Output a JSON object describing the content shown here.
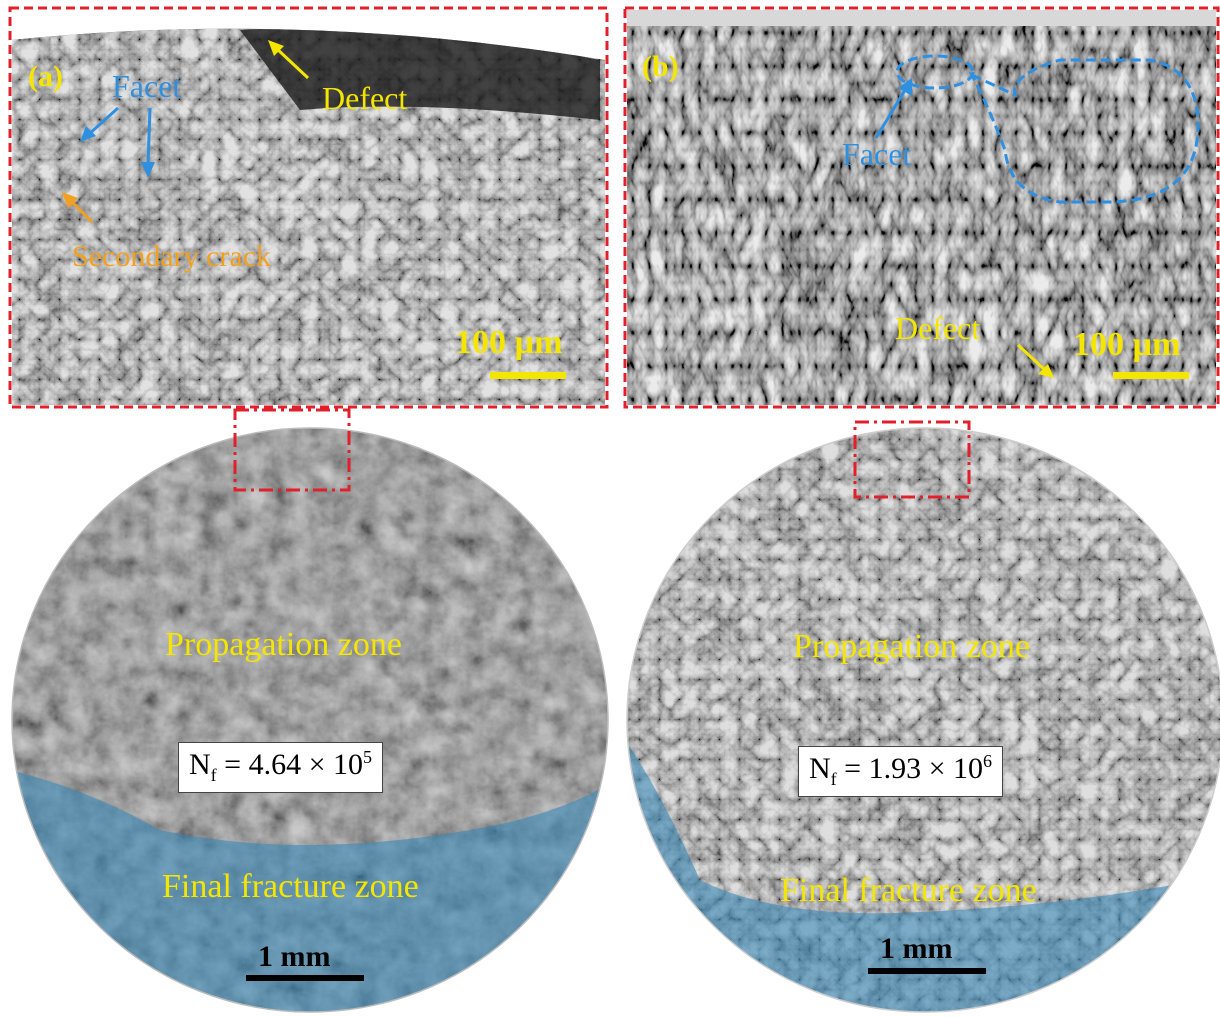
{
  "panels": {
    "a": {
      "tag": "(a)",
      "facet_label": "Facet",
      "defect_label": "Defect",
      "secondary_crack_label": "Secondary crack",
      "scale_label": "100 µm",
      "propagation_label": "Propagation zone",
      "final_label": "Final fracture zone",
      "nf_base": "4.64",
      "nf_exp": "5",
      "mm_label": "1 mm"
    },
    "b": {
      "tag": "(b)",
      "facet_label": "Facet",
      "defect_label": "Defect",
      "scale_label": "100 µm",
      "propagation_label": "Propagation zone",
      "final_label": "Final fracture zone",
      "nf_base": "1.93",
      "nf_exp": "6",
      "mm_label": "1 mm"
    }
  },
  "nf_symbol": "N",
  "nf_sub": "f",
  "times_sign": "×",
  "ten": "10",
  "equals": "=",
  "colors": {
    "frame_red": "#e0202a",
    "label_yellow": "#f5e600",
    "label_blue": "#2f8fe0",
    "label_orange": "#f2a020",
    "final_zone_overlay": "#3a88b8"
  }
}
